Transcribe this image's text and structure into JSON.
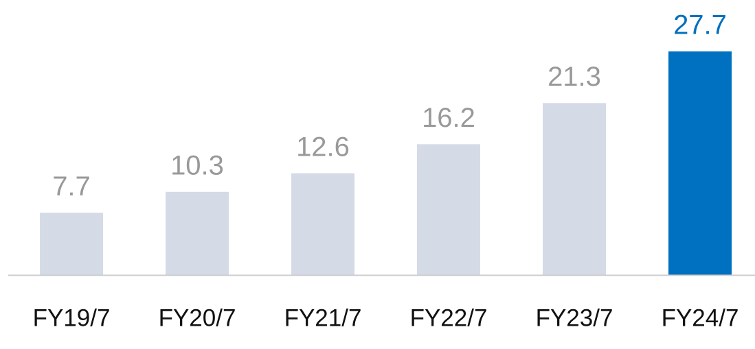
{
  "chart_data": {
    "type": "bar",
    "categories": [
      "FY19/7",
      "FY20/7",
      "FY21/7",
      "FY22/7",
      "FY23/7",
      "FY24/7"
    ],
    "values": [
      7.7,
      10.3,
      12.6,
      16.2,
      21.3,
      27.7
    ],
    "colors": [
      "#d5dae7",
      "#d5dae7",
      "#d5dae7",
      "#d5dae7",
      "#d5dae7",
      "#0070c0"
    ],
    "label_colors": [
      "#999999",
      "#999999",
      "#999999",
      "#999999",
      "#999999",
      "#0070c0"
    ]
  }
}
